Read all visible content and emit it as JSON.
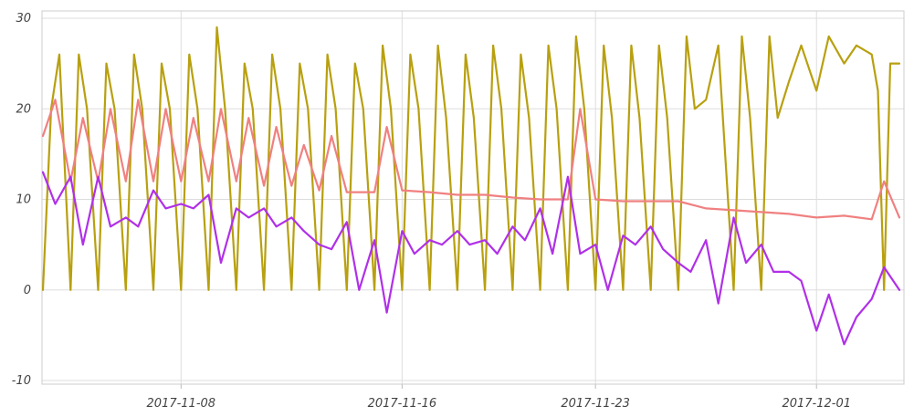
{
  "chart_data": {
    "type": "line",
    "title": "",
    "xlabel": "",
    "ylabel": "",
    "ylim": [
      -10,
      30
    ],
    "xlim": [
      "2017-11-03",
      "2017-12-04"
    ],
    "y_ticks": [
      "30",
      "20",
      "10",
      "0",
      "-10"
    ],
    "x_ticks": [
      {
        "date": "2017-11-08",
        "label": "2017-11-08"
      },
      {
        "date": "2017-11-16",
        "label": "2017-11-16"
      },
      {
        "date": "2017-11-23",
        "label": "2017-11-23"
      },
      {
        "date": "2017-12-01",
        "label": "2017-12-01"
      }
    ],
    "grid": true,
    "legend": "none",
    "series": [
      {
        "color": "#b8a010",
        "points": [
          [
            "2017-11-03",
            0
          ],
          [
            "2017-11-03",
            20
          ],
          [
            "2017-11-03",
            26
          ],
          [
            "2017-11-04",
            0
          ],
          [
            "2017-11-04",
            26
          ],
          [
            "2017-11-04",
            20
          ],
          [
            "2017-11-05",
            0
          ],
          [
            "2017-11-05",
            25
          ],
          [
            "2017-11-05",
            20
          ],
          [
            "2017-11-06",
            0
          ],
          [
            "2017-11-06",
            26
          ],
          [
            "2017-11-06",
            20
          ],
          [
            "2017-11-07",
            0
          ],
          [
            "2017-11-07",
            25
          ],
          [
            "2017-11-07",
            20
          ],
          [
            "2017-11-08",
            0
          ],
          [
            "2017-11-08",
            26
          ],
          [
            "2017-11-08",
            20
          ],
          [
            "2017-11-09",
            0
          ],
          [
            "2017-11-09",
            29
          ],
          [
            "2017-11-09",
            20
          ],
          [
            "2017-11-10",
            0
          ],
          [
            "2017-11-10",
            25
          ],
          [
            "2017-11-10",
            20
          ],
          [
            "2017-11-11",
            0
          ],
          [
            "2017-11-11",
            26
          ],
          [
            "2017-11-11",
            20
          ],
          [
            "2017-11-12",
            0
          ],
          [
            "2017-11-12",
            25
          ],
          [
            "2017-11-12",
            20
          ],
          [
            "2017-11-13",
            0
          ],
          [
            "2017-11-13",
            26
          ],
          [
            "2017-11-13",
            20
          ],
          [
            "2017-11-14",
            0
          ],
          [
            "2017-11-14",
            25
          ],
          [
            "2017-11-14",
            20
          ],
          [
            "2017-11-15",
            0
          ],
          [
            "2017-11-15",
            27
          ],
          [
            "2017-11-15",
            20
          ],
          [
            "2017-11-16",
            0
          ],
          [
            "2017-11-16",
            26
          ],
          [
            "2017-11-16",
            20
          ],
          [
            "2017-11-17",
            0
          ],
          [
            "2017-11-17",
            27
          ],
          [
            "2017-11-17",
            19
          ],
          [
            "2017-11-18",
            0
          ],
          [
            "2017-11-18",
            26
          ],
          [
            "2017-11-18",
            19
          ],
          [
            "2017-11-19",
            0
          ],
          [
            "2017-11-19",
            27
          ],
          [
            "2017-11-19",
            20
          ],
          [
            "2017-11-20",
            0
          ],
          [
            "2017-11-20",
            26
          ],
          [
            "2017-11-20",
            19
          ],
          [
            "2017-11-21",
            0
          ],
          [
            "2017-11-21",
            27
          ],
          [
            "2017-11-21",
            20
          ],
          [
            "2017-11-22",
            0
          ],
          [
            "2017-11-22",
            28
          ],
          [
            "2017-11-22",
            20
          ],
          [
            "2017-11-23",
            0
          ],
          [
            "2017-11-23",
            27
          ],
          [
            "2017-11-23",
            19
          ],
          [
            "2017-11-24",
            0
          ],
          [
            "2017-11-24",
            27
          ],
          [
            "2017-11-24",
            19
          ],
          [
            "2017-11-25",
            0
          ],
          [
            "2017-11-25",
            27
          ],
          [
            "2017-11-25",
            19
          ],
          [
            "2017-11-26",
            0
          ],
          [
            "2017-11-26",
            28
          ],
          [
            "2017-11-26",
            20
          ],
          [
            "2017-11-27",
            21
          ],
          [
            "2017-11-27",
            27
          ],
          [
            "2017-11-28",
            0
          ],
          [
            "2017-11-28",
            28
          ],
          [
            "2017-11-28",
            19
          ],
          [
            "2017-11-29",
            0
          ],
          [
            "2017-11-29",
            28
          ],
          [
            "2017-11-29",
            19
          ],
          [
            "2017-11-30",
            23
          ],
          [
            "2017-11-30",
            27
          ],
          [
            "2017-12-01",
            22
          ],
          [
            "2017-12-01",
            28
          ],
          [
            "2017-12-02",
            25
          ],
          [
            "2017-12-02",
            27
          ],
          [
            "2017-12-03",
            26
          ],
          [
            "2017-12-03",
            22
          ],
          [
            "2017-12-03",
            0
          ],
          [
            "2017-12-03",
            25
          ],
          [
            "2017-12-04",
            25
          ]
        ]
      },
      {
        "color": "#f08080",
        "points": [
          [
            "2017-11-03",
            17
          ],
          [
            "2017-11-03",
            21
          ],
          [
            "2017-11-04",
            12
          ],
          [
            "2017-11-04",
            19
          ],
          [
            "2017-11-05",
            12
          ],
          [
            "2017-11-05",
            20
          ],
          [
            "2017-11-06",
            12
          ],
          [
            "2017-11-06",
            21
          ],
          [
            "2017-11-07",
            12
          ],
          [
            "2017-11-07",
            20
          ],
          [
            "2017-11-08",
            12
          ],
          [
            "2017-11-08",
            19
          ],
          [
            "2017-11-09",
            12
          ],
          [
            "2017-11-09",
            20
          ],
          [
            "2017-11-10",
            12
          ],
          [
            "2017-11-10",
            19
          ],
          [
            "2017-11-11",
            11.5
          ],
          [
            "2017-11-11",
            18
          ],
          [
            "2017-11-12",
            11.5
          ],
          [
            "2017-11-12",
            16
          ],
          [
            "2017-11-13",
            11
          ],
          [
            "2017-11-13",
            17
          ],
          [
            "2017-11-14",
            10.8
          ],
          [
            "2017-11-15",
            10.8
          ],
          [
            "2017-11-15",
            18
          ],
          [
            "2017-11-16",
            11
          ],
          [
            "2017-11-17",
            10.8
          ],
          [
            "2017-11-18",
            10.5
          ],
          [
            "2017-11-19",
            10.5
          ],
          [
            "2017-11-20",
            10.2
          ],
          [
            "2017-11-21",
            10
          ],
          [
            "2017-11-22",
            10
          ],
          [
            "2017-11-22",
            20
          ],
          [
            "2017-11-23",
            10
          ],
          [
            "2017-11-24",
            9.8
          ],
          [
            "2017-11-25",
            9.8
          ],
          [
            "2017-11-26",
            9.8
          ],
          [
            "2017-11-27",
            9
          ],
          [
            "2017-11-28",
            8.8
          ],
          [
            "2017-11-29",
            8.6
          ],
          [
            "2017-11-30",
            8.4
          ],
          [
            "2017-12-01",
            8
          ],
          [
            "2017-12-02",
            8.2
          ],
          [
            "2017-12-03",
            7.8
          ],
          [
            "2017-12-03",
            12
          ],
          [
            "2017-12-04",
            8
          ]
        ]
      },
      {
        "color": "#b030e8",
        "points": [
          [
            "2017-11-03",
            13
          ],
          [
            "2017-11-03",
            9.5
          ],
          [
            "2017-11-04",
            12.5
          ],
          [
            "2017-11-04",
            5
          ],
          [
            "2017-11-05",
            12.5
          ],
          [
            "2017-11-05",
            7
          ],
          [
            "2017-11-06",
            8
          ],
          [
            "2017-11-06",
            7
          ],
          [
            "2017-11-07",
            11
          ],
          [
            "2017-11-07",
            9
          ],
          [
            "2017-11-08",
            9.5
          ],
          [
            "2017-11-08",
            9
          ],
          [
            "2017-11-09",
            10.5
          ],
          [
            "2017-11-09",
            3
          ],
          [
            "2017-11-10",
            9
          ],
          [
            "2017-11-10",
            8
          ],
          [
            "2017-11-11",
            9
          ],
          [
            "2017-11-11",
            7
          ],
          [
            "2017-11-12",
            8
          ],
          [
            "2017-11-12",
            6.5
          ],
          [
            "2017-11-13",
            5
          ],
          [
            "2017-11-13",
            4.5
          ],
          [
            "2017-11-14",
            7.5
          ],
          [
            "2017-11-14",
            0
          ],
          [
            "2017-11-15",
            5.5
          ],
          [
            "2017-11-15",
            -2.5
          ],
          [
            "2017-11-16",
            6.5
          ],
          [
            "2017-11-16",
            4
          ],
          [
            "2017-11-17",
            5.5
          ],
          [
            "2017-11-17",
            5
          ],
          [
            "2017-11-18",
            6.5
          ],
          [
            "2017-11-18",
            5
          ],
          [
            "2017-11-19",
            5.5
          ],
          [
            "2017-11-19",
            4
          ],
          [
            "2017-11-20",
            7
          ],
          [
            "2017-11-20",
            5.5
          ],
          [
            "2017-11-21",
            9
          ],
          [
            "2017-11-21",
            4
          ],
          [
            "2017-11-22",
            12.5
          ],
          [
            "2017-11-22",
            4
          ],
          [
            "2017-11-23",
            5
          ],
          [
            "2017-11-23",
            0
          ],
          [
            "2017-11-24",
            6
          ],
          [
            "2017-11-24",
            5
          ],
          [
            "2017-11-25",
            7
          ],
          [
            "2017-11-25",
            4.5
          ],
          [
            "2017-11-26",
            3
          ],
          [
            "2017-11-26",
            2
          ],
          [
            "2017-11-27",
            5.5
          ],
          [
            "2017-11-27",
            -1.5
          ],
          [
            "2017-11-28",
            8
          ],
          [
            "2017-11-28",
            3
          ],
          [
            "2017-11-29",
            5
          ],
          [
            "2017-11-29",
            2
          ],
          [
            "2017-11-30",
            2
          ],
          [
            "2017-11-30",
            1
          ],
          [
            "2017-12-01",
            -4.5
          ],
          [
            "2017-12-01",
            -0.5
          ],
          [
            "2017-12-02",
            -6
          ],
          [
            "2017-12-02",
            -3
          ],
          [
            "2017-12-03",
            -1
          ],
          [
            "2017-12-03",
            2.5
          ],
          [
            "2017-12-04",
            0
          ]
        ]
      }
    ]
  }
}
